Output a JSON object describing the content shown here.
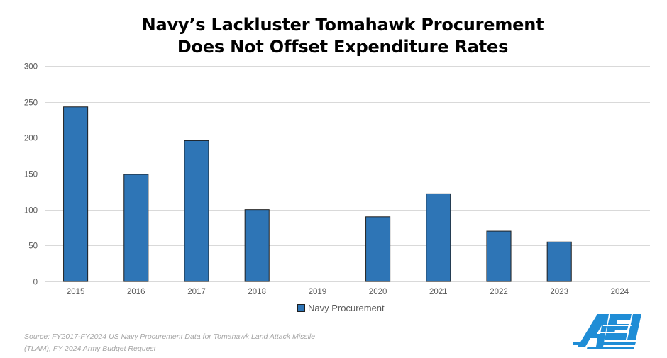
{
  "title": {
    "line1": "Navy’s Lackluster Tomahawk Procurement",
    "line2": "Does Not Offset Expenditure Rates"
  },
  "chart_data": {
    "type": "bar",
    "title": "Navy’s Lackluster Tomahawk Procurement Does Not Offset Expenditure Rates",
    "xlabel": "",
    "ylabel": "",
    "categories": [
      "2015",
      "2016",
      "2017",
      "2018",
      "2019",
      "2020",
      "2021",
      "2022",
      "2023",
      "2024"
    ],
    "series": [
      {
        "name": "Navy Procurement",
        "values": [
          243,
          149,
          196,
          100,
          0,
          90,
          122,
          70,
          55,
          0
        ]
      }
    ],
    "ylim": [
      0,
      300
    ],
    "yticks": [
      "0",
      "50",
      "100",
      "150",
      "200",
      "250",
      "300"
    ],
    "grid": true,
    "legend_position": "bottom-center"
  },
  "legend": {
    "label": "Navy Procurement"
  },
  "source": {
    "line1": "Source: FY2017-FY2024 US Navy Procurement Data for Tomahawk Land Attack Missile",
    "line2": "(TLAM), FY 2024 Army Budget Request"
  },
  "colors": {
    "bar_fill": "#2e75b6",
    "bar_stroke": "#1f1f1f",
    "gridline": "#d9d9d9",
    "axis_text": "#595959",
    "logo": "#1f8dd6",
    "source_text": "#a6a6a6"
  },
  "logo": {
    "text": "AEI"
  }
}
